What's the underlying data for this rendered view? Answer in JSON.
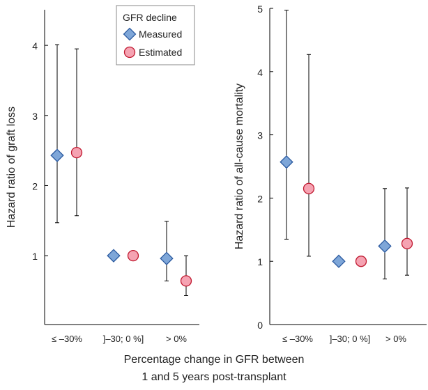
{
  "chart_data": [
    {
      "type": "scatter",
      "ylabel": "Hazard ratio of graft loss",
      "ylim": [
        0,
        4.5
      ],
      "yticks": [
        1,
        2,
        3,
        4
      ],
      "categories": [
        "≤ –30%",
        "]–30; 0 %]",
        "> 0%"
      ],
      "series": [
        {
          "name": "Measured",
          "values": [
            2.43,
            1.0,
            0.96
          ],
          "lower": [
            1.47,
            null,
            0.64
          ],
          "upper": [
            4.01,
            null,
            1.49
          ]
        },
        {
          "name": "Estimated",
          "values": [
            2.47,
            1.0,
            0.64
          ],
          "lower": [
            1.57,
            null,
            0.43
          ],
          "upper": [
            3.95,
            null,
            1.0
          ]
        }
      ],
      "legend": {
        "title": "GFR decline",
        "position": "top-right"
      }
    },
    {
      "type": "scatter",
      "ylabel": "Hazard ratio of all-cause mortality",
      "ylim": [
        0,
        5
      ],
      "yticks": [
        0,
        1,
        2,
        3,
        4,
        5
      ],
      "categories": [
        "≤ –30%",
        "]–30; 0 %]",
        "> 0%"
      ],
      "series": [
        {
          "name": "Measured",
          "values": [
            2.57,
            1.0,
            1.24
          ],
          "lower": [
            1.35,
            null,
            0.72
          ],
          "upper": [
            4.97,
            null,
            2.15
          ]
        },
        {
          "name": "Estimated",
          "values": [
            2.15,
            1.0,
            1.28
          ],
          "lower": [
            1.08,
            null,
            0.78
          ],
          "upper": [
            4.27,
            null,
            2.16
          ]
        }
      ]
    }
  ],
  "legend": {
    "title": "GFR decline",
    "items": [
      "Measured",
      "Estimated"
    ]
  },
  "xlabel": {
    "line1": "Percentage change in GFR between",
    "line2": "1 and 5 years post-transplant"
  },
  "colors": {
    "measured_fill": "#7ea6d8",
    "measured_stroke": "#2b5aa0",
    "estimated_fill": "#f5a3b2",
    "estimated_stroke": "#c0182f"
  }
}
